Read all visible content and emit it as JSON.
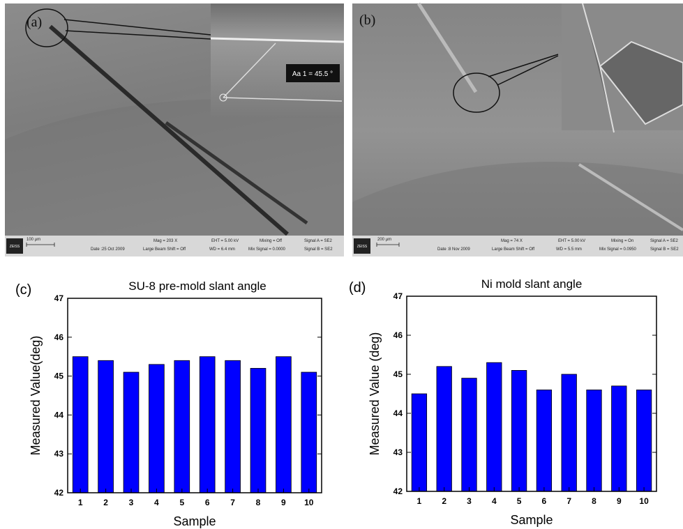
{
  "panels": [
    {
      "label": "(a)",
      "measurement": "Aa 1 =  45.5 °",
      "brand": "ZEISS",
      "scale_bar": "100 µm",
      "info": [
        "Date :25 Oct 2009",
        "Mag =   203 X",
        "Large Beam Shift = Off",
        "EHT =  5.00 kV",
        "WD =  6.4 mm",
        "Mixing = Off",
        "Mix Signal = 0.0000",
        "Signal A = SE2",
        "Signal B = SE2"
      ]
    },
    {
      "label": "(b)",
      "brand": "ZEISS",
      "scale_bar": "200 µm",
      "info": [
        "Date :8 Nov 2009",
        "Mag =    74 X",
        "Large Beam Shift = Off",
        "EHT =  5.00 kV",
        "WD =  5.5 mm",
        "Mixing = On",
        "Mix Signal = 0.0950",
        "Signal A = SE2",
        "Signal B = SE2"
      ]
    }
  ],
  "chart_data": [
    {
      "type": "bar",
      "panel_label": "(c)",
      "title": "SU-8 pre-mold slant angle",
      "x_label": "Sample",
      "y_label": "Measured Value(deg)",
      "categories": [
        "1",
        "2",
        "3",
        "4",
        "5",
        "6",
        "7",
        "8",
        "9",
        "10"
      ],
      "values": [
        45.5,
        45.4,
        45.1,
        45.3,
        45.4,
        45.5,
        45.4,
        45.2,
        45.5,
        45.1
      ],
      "color": "#0000ff",
      "ylim": [
        42,
        47
      ],
      "yticks": [
        42,
        43,
        44,
        45,
        46,
        47
      ],
      "grid": false
    },
    {
      "type": "bar",
      "panel_label": "(d)",
      "title": "Ni mold slant angle",
      "x_label": "Sample",
      "y_label": "Measured Value (deg)",
      "categories": [
        "1",
        "2",
        "3",
        "4",
        "5",
        "6",
        "7",
        "8",
        "9",
        "10"
      ],
      "values": [
        44.5,
        45.2,
        44.9,
        45.3,
        45.1,
        44.6,
        45.0,
        44.6,
        44.7,
        44.6
      ],
      "color": "#0000ff",
      "ylim": [
        42,
        47
      ],
      "yticks": [
        42,
        43,
        44,
        45,
        46,
        47
      ],
      "grid": false
    }
  ]
}
